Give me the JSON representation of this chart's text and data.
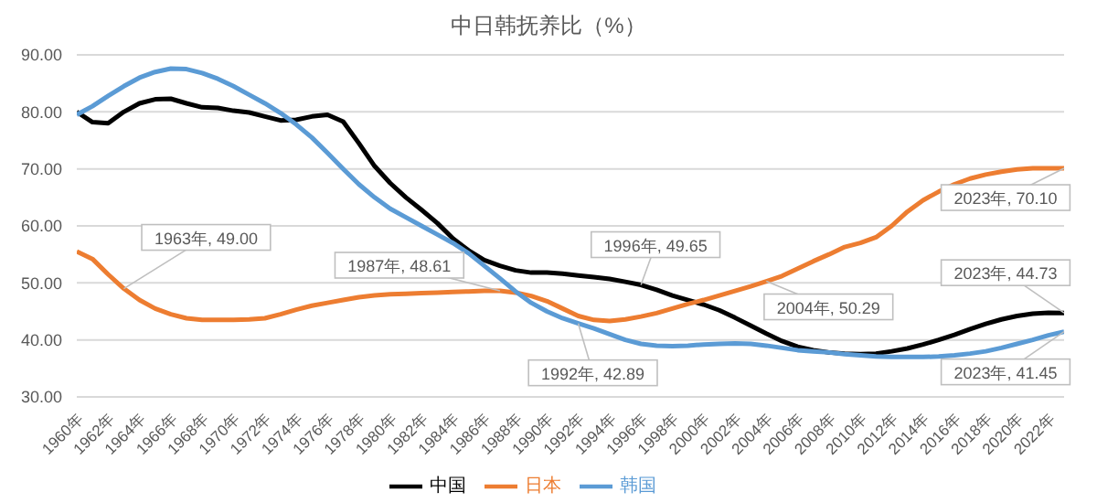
{
  "chart_data": {
    "type": "line",
    "title": "中日韩抚养比（%）",
    "x": [
      1960,
      1961,
      1962,
      1963,
      1964,
      1965,
      1966,
      1967,
      1968,
      1969,
      1970,
      1971,
      1972,
      1973,
      1974,
      1975,
      1976,
      1977,
      1978,
      1979,
      1980,
      1981,
      1982,
      1983,
      1984,
      1985,
      1986,
      1987,
      1988,
      1989,
      1990,
      1991,
      1992,
      1993,
      1994,
      1995,
      1996,
      1997,
      1998,
      1999,
      2000,
      2001,
      2002,
      2003,
      2004,
      2005,
      2006,
      2007,
      2008,
      2009,
      2010,
      2011,
      2012,
      2013,
      2014,
      2015,
      2016,
      2017,
      2018,
      2019,
      2020,
      2021,
      2022,
      2023
    ],
    "series": [
      {
        "name": "中国",
        "color": "#000000",
        "values": [
          80,
          78.2,
          78,
          80,
          81.5,
          82.2,
          82.3,
          81.5,
          80.8,
          80.7,
          80.2,
          79.9,
          79.2,
          78.5,
          78.6,
          79.2,
          79.5,
          78.3,
          74.5,
          70.5,
          67.5,
          65,
          62.8,
          60.5,
          57.8,
          55.7,
          54,
          53,
          52.2,
          51.8,
          51.8,
          51.6,
          51.3,
          51,
          50.7,
          50.2,
          49.65,
          48.8,
          47.8,
          47,
          46.2,
          45.2,
          43.9,
          42.5,
          41.1,
          39.8,
          38.8,
          38.2,
          37.8,
          37.6,
          37.5,
          37.6,
          38,
          38.5,
          39.2,
          40,
          40.9,
          41.9,
          42.8,
          43.6,
          44.2,
          44.6,
          44.75,
          44.73
        ]
      },
      {
        "name": "日本",
        "color": "#ed7d31",
        "values": [
          55.5,
          54.2,
          51.5,
          49,
          47,
          45.5,
          44.5,
          43.8,
          43.5,
          43.5,
          43.5,
          43.6,
          43.8,
          44.5,
          45.3,
          46,
          46.5,
          47,
          47.5,
          47.8,
          48,
          48.1,
          48.2,
          48.3,
          48.4,
          48.5,
          48.6,
          48.61,
          48.3,
          47.7,
          46.8,
          45.5,
          44.2,
          43.5,
          43.3,
          43.6,
          44.1,
          44.7,
          45.5,
          46.3,
          47,
          47.8,
          48.6,
          49.4,
          50.29,
          51.2,
          52.5,
          53.8,
          55,
          56.3,
          57,
          58,
          60,
          62.5,
          64.5,
          66,
          67.3,
          68.3,
          69,
          69.5,
          69.9,
          70.1,
          70.1,
          70.1
        ]
      },
      {
        "name": "韩国",
        "color": "#5b9bd5",
        "values": [
          79.5,
          81,
          82.8,
          84.5,
          86,
          87,
          87.6,
          87.5,
          86.8,
          85.8,
          84.5,
          83,
          81.5,
          79.8,
          77.8,
          75.5,
          72.8,
          70,
          67.3,
          65,
          63,
          61.5,
          60,
          58.5,
          57,
          55.2,
          53,
          50.8,
          48.5,
          46.5,
          45,
          43.8,
          42.89,
          42,
          41,
          40,
          39.3,
          39,
          38.9,
          39,
          39.2,
          39.3,
          39.4,
          39.3,
          39,
          38.6,
          38.2,
          38,
          37.8,
          37.5,
          37.3,
          37.1,
          37,
          37,
          37,
          37.1,
          37.3,
          37.6,
          38,
          38.6,
          39.3,
          40,
          40.8,
          41.45
        ]
      }
    ],
    "xlim": [
      1960,
      2023
    ],
    "xticks": [
      {
        "value": 1960,
        "label": "1960年"
      },
      {
        "value": 1962,
        "label": "1962年"
      },
      {
        "value": 1964,
        "label": "1964年"
      },
      {
        "value": 1966,
        "label": "1966年"
      },
      {
        "value": 1968,
        "label": "1968年"
      },
      {
        "value": 1970,
        "label": "1970年"
      },
      {
        "value": 1972,
        "label": "1972年"
      },
      {
        "value": 1974,
        "label": "1974年"
      },
      {
        "value": 1976,
        "label": "1976年"
      },
      {
        "value": 1978,
        "label": "1978年"
      },
      {
        "value": 1980,
        "label": "1980年"
      },
      {
        "value": 1982,
        "label": "1982年"
      },
      {
        "value": 1984,
        "label": "1984年"
      },
      {
        "value": 1986,
        "label": "1986年"
      },
      {
        "value": 1988,
        "label": "1988年"
      },
      {
        "value": 1990,
        "label": "1990年"
      },
      {
        "value": 1992,
        "label": "1992年"
      },
      {
        "value": 1994,
        "label": "1994年"
      },
      {
        "value": 1996,
        "label": "1996年"
      },
      {
        "value": 1998,
        "label": "1998年"
      },
      {
        "value": 2000,
        "label": "2000年"
      },
      {
        "value": 2002,
        "label": "2002年"
      },
      {
        "value": 2004,
        "label": "2004年"
      },
      {
        "value": 2006,
        "label": "2006年"
      },
      {
        "value": 2008,
        "label": "2008年"
      },
      {
        "value": 2010,
        "label": "2010年"
      },
      {
        "value": 2012,
        "label": "2012年"
      },
      {
        "value": 2014,
        "label": "2014年"
      },
      {
        "value": 2016,
        "label": "2016年"
      },
      {
        "value": 2018,
        "label": "2018年"
      },
      {
        "value": 2020,
        "label": "2020年"
      },
      {
        "value": 2022,
        "label": "2022年"
      }
    ],
    "ylim": [
      30,
      90
    ],
    "yticks": [
      {
        "value": 30,
        "label": "30.00"
      },
      {
        "value": 40,
        "label": "40.00"
      },
      {
        "value": 50,
        "label": "50.00"
      },
      {
        "value": 60,
        "label": "60.00"
      },
      {
        "value": 70,
        "label": "70.00"
      },
      {
        "value": 80,
        "label": "80.00"
      },
      {
        "value": 90,
        "label": "90.00"
      }
    ],
    "annotations": [
      {
        "text": "1963年, 49.00",
        "x": 1963,
        "y": 49
      },
      {
        "text": "1987年, 48.61",
        "x": 1987,
        "y": 48.61
      },
      {
        "text": "1992年, 42.89",
        "x": 1992,
        "y": 42.89
      },
      {
        "text": "1996年, 49.65",
        "x": 1996,
        "y": 49.65
      },
      {
        "text": "2004年, 50.29",
        "x": 2004,
        "y": 50.29
      },
      {
        "text": "2023年, 70.10",
        "x": 2023,
        "y": 70.1
      },
      {
        "text": "2023年, 44.73",
        "x": 2023,
        "y": 44.73
      },
      {
        "text": "2023年, 41.45",
        "x": 2023,
        "y": 41.45
      }
    ],
    "grid": "y",
    "legend": "bottom",
    "line_style": "solid"
  }
}
